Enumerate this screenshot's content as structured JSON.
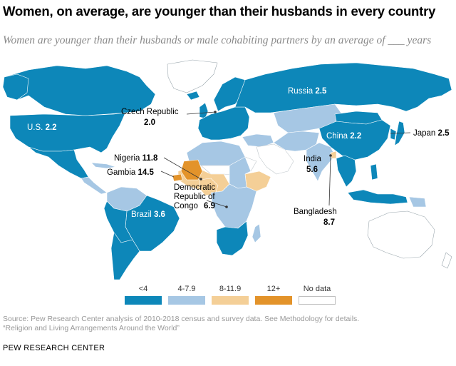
{
  "title": "Women, on average, are younger than their husbands in every country",
  "subtitle": "Women are younger than their husbands or male cohabiting partners by an average of ___ years",
  "colors": {
    "lt4": "#0d87b9",
    "r4_7": "#a6c7e4",
    "r8_11": "#f4cf97",
    "r12": "#e3932a",
    "nodata": "#ffffff",
    "border": "#ffffff"
  },
  "annotations": [
    {
      "name": "Russia",
      "value": "2.5"
    },
    {
      "name": "Czech Republic",
      "value": "2.0"
    },
    {
      "name": "U.S.",
      "value": "2.2"
    },
    {
      "name": "China",
      "value": "2.2"
    },
    {
      "name": "Japan",
      "value": "2.5"
    },
    {
      "name": "Nigeria",
      "value": "11.8"
    },
    {
      "name": "Gambia",
      "value": "14.5"
    },
    {
      "name": "India",
      "value": "5.6"
    },
    {
      "name": "Democratic Republic of Congo",
      "value": "6.9"
    },
    {
      "name": "Brazil",
      "value": "3.6"
    },
    {
      "name": "Bangladesh",
      "value": "8.7"
    }
  ],
  "legend": [
    {
      "label": "<4",
      "color": "#0d87b9"
    },
    {
      "label": "4-7.9",
      "color": "#a6c7e4"
    },
    {
      "label": "8-11.9",
      "color": "#f4cf97"
    },
    {
      "label": "12+",
      "color": "#e3932a"
    },
    {
      "label": "No data",
      "color": "#ffffff"
    }
  ],
  "source_line1": "Source: Pew Research Center analysis of 2010-2018 census and survey data. See Methodology for details.",
  "source_line2": "“Religion and Living Arrangements Around the World”",
  "brand": "PEW RESEARCH CENTER"
}
